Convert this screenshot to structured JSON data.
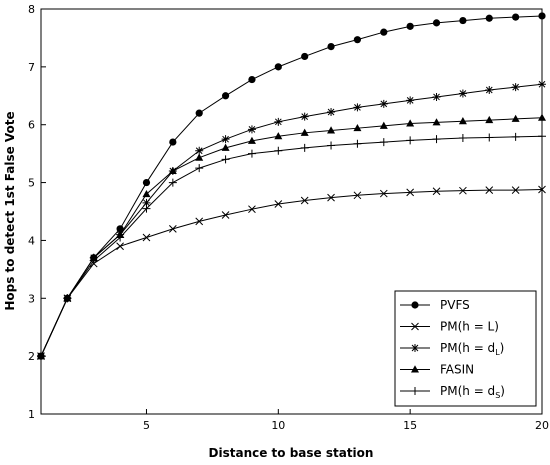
{
  "chart_data": {
    "type": "line",
    "xlabel": "Distance to base station",
    "ylabel": "Hops to detect 1st False Vote",
    "xlim": [
      1,
      20
    ],
    "ylim": [
      1,
      8
    ],
    "x_ticks": [
      5,
      10,
      15,
      20
    ],
    "y_ticks": [
      1,
      2,
      3,
      4,
      5,
      6,
      7,
      8
    ],
    "grid": false,
    "legend_position": "bottom-right",
    "x": [
      1,
      2,
      3,
      4,
      5,
      6,
      7,
      8,
      9,
      10,
      11,
      12,
      13,
      14,
      15,
      16,
      17,
      18,
      19,
      20
    ],
    "series": [
      {
        "name": "PVFS",
        "marker": "filled-circle",
        "values": [
          2.0,
          3.0,
          3.7,
          4.2,
          5.0,
          5.7,
          6.2,
          6.5,
          6.78,
          7.0,
          7.18,
          7.35,
          7.47,
          7.6,
          7.7,
          7.76,
          7.8,
          7.84,
          7.86,
          7.88
        ]
      },
      {
        "name": "PM(h = L)",
        "marker": "x",
        "values": [
          2.0,
          3.0,
          3.6,
          3.9,
          4.05,
          4.2,
          4.33,
          4.44,
          4.54,
          4.63,
          4.69,
          4.74,
          4.78,
          4.81,
          4.83,
          4.85,
          4.86,
          4.87,
          4.87,
          4.88
        ]
      },
      {
        "name": "PM(h = d",
        "name_sub": "L",
        "name_suffix": ")",
        "marker": "asterisk",
        "values": [
          2.0,
          3.0,
          3.7,
          4.1,
          4.65,
          5.2,
          5.55,
          5.75,
          5.92,
          6.05,
          6.14,
          6.22,
          6.3,
          6.36,
          6.42,
          6.48,
          6.54,
          6.6,
          6.65,
          6.7
        ]
      },
      {
        "name": "FASIN",
        "marker": "filled-triangle",
        "values": [
          2.0,
          3.0,
          3.7,
          4.1,
          4.8,
          5.2,
          5.43,
          5.6,
          5.72,
          5.8,
          5.86,
          5.9,
          5.94,
          5.98,
          6.02,
          6.04,
          6.06,
          6.08,
          6.1,
          6.12
        ]
      },
      {
        "name": "PM(h = d",
        "name_sub": "S",
        "name_suffix": ")",
        "marker": "plus",
        "values": [
          2.0,
          3.0,
          3.65,
          4.05,
          4.55,
          5.0,
          5.25,
          5.4,
          5.5,
          5.55,
          5.6,
          5.64,
          5.67,
          5.7,
          5.73,
          5.75,
          5.77,
          5.78,
          5.79,
          5.8
        ]
      }
    ]
  }
}
